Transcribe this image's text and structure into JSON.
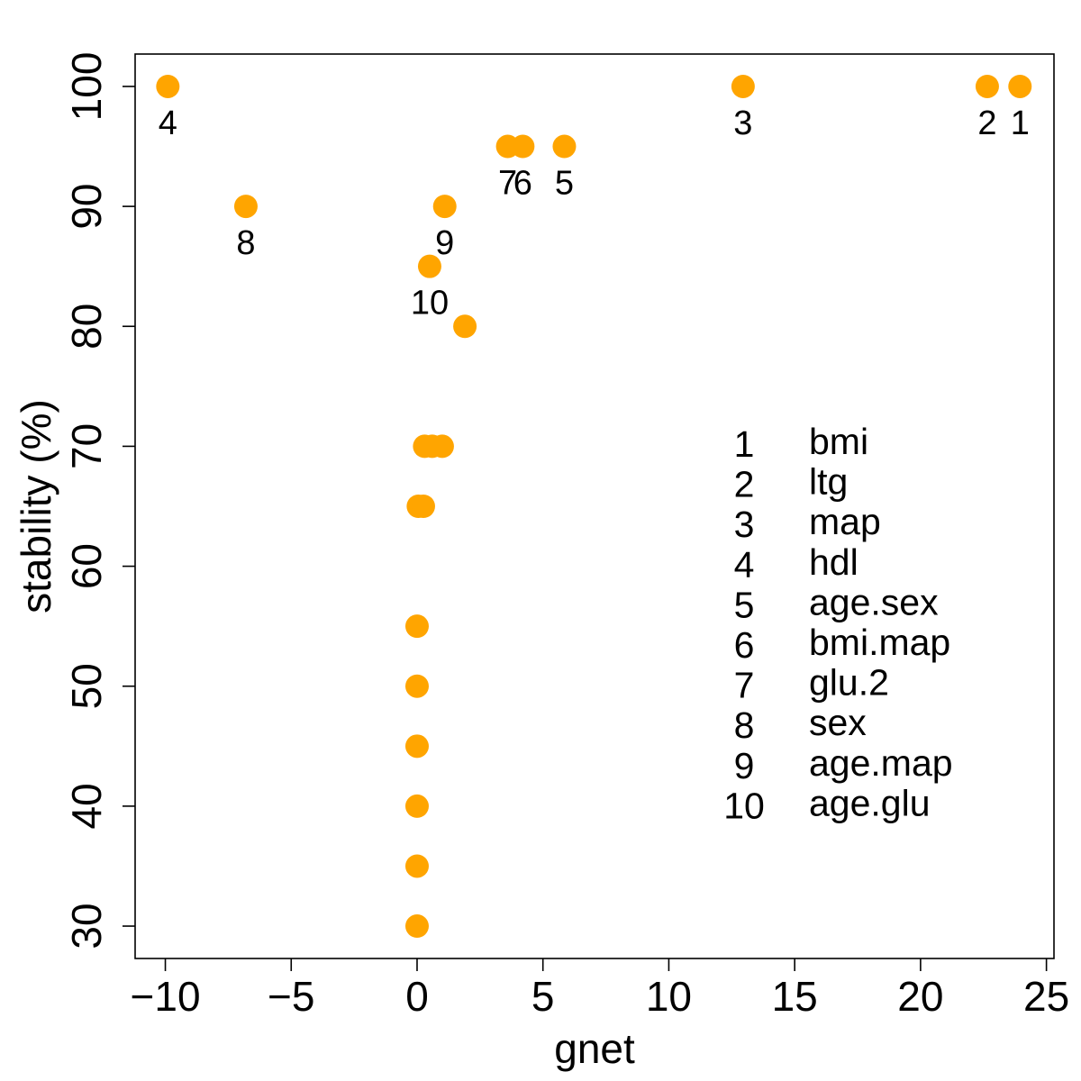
{
  "chart_data": {
    "type": "scatter",
    "title": "",
    "xlabel": "gnet",
    "ylabel": "stability (%)",
    "xlim": [
      -11.2,
      25.3
    ],
    "ylim": [
      27.3,
      102.7
    ],
    "xticks": [
      -10,
      -5,
      0,
      5,
      10,
      15,
      20,
      25
    ],
    "xtick_labels": [
      "−10",
      "−5",
      "0",
      "5",
      "10",
      "15",
      "20",
      "25"
    ],
    "yticks": [
      30,
      40,
      50,
      60,
      70,
      80,
      90,
      100
    ],
    "ytick_labels": [
      "30",
      "40",
      "50",
      "60",
      "70",
      "80",
      "90",
      "100"
    ],
    "grid": false,
    "point_color": "#FFA500",
    "points": [
      {
        "x": 23.95,
        "y": 100,
        "label": "1"
      },
      {
        "x": 22.65,
        "y": 100,
        "label": "2"
      },
      {
        "x": 12.95,
        "y": 100,
        "label": "3"
      },
      {
        "x": -9.9,
        "y": 100,
        "label": "4"
      },
      {
        "x": 5.85,
        "y": 95,
        "label": "5"
      },
      {
        "x": 4.2,
        "y": 95,
        "label": "6"
      },
      {
        "x": 3.6,
        "y": 95,
        "label": "7"
      },
      {
        "x": -6.8,
        "y": 90,
        "label": "8"
      },
      {
        "x": 1.1,
        "y": 90,
        "label": "9"
      },
      {
        "x": 0.5,
        "y": 85,
        "label": "10"
      },
      {
        "x": 1.9,
        "y": 80,
        "label": ""
      },
      {
        "x": 0.3,
        "y": 70,
        "label": ""
      },
      {
        "x": 0.6,
        "y": 70,
        "label": ""
      },
      {
        "x": 1.0,
        "y": 70,
        "label": ""
      },
      {
        "x": 0.05,
        "y": 65,
        "label": ""
      },
      {
        "x": 0.25,
        "y": 65,
        "label": ""
      },
      {
        "x": 0.0,
        "y": 55,
        "label": ""
      },
      {
        "x": 0.0,
        "y": 50,
        "label": ""
      },
      {
        "x": 0.0,
        "y": 45,
        "label": ""
      },
      {
        "x": 0.0,
        "y": 40,
        "label": ""
      },
      {
        "x": 0.0,
        "y": 35,
        "label": ""
      },
      {
        "x": 0.0,
        "y": 30,
        "label": ""
      }
    ],
    "legend": {
      "placement": "center-right",
      "entries": [
        {
          "num": "1",
          "name": "bmi"
        },
        {
          "num": "2",
          "name": "ltg"
        },
        {
          "num": "3",
          "name": "map"
        },
        {
          "num": "4",
          "name": "hdl"
        },
        {
          "num": "5",
          "name": "age.sex"
        },
        {
          "num": "6",
          "name": "bmi.map"
        },
        {
          "num": "7",
          "name": "glu.2"
        },
        {
          "num": "8",
          "name": "sex"
        },
        {
          "num": "9",
          "name": "age.map"
        },
        {
          "num": "10",
          "name": "age.glu"
        }
      ]
    }
  }
}
